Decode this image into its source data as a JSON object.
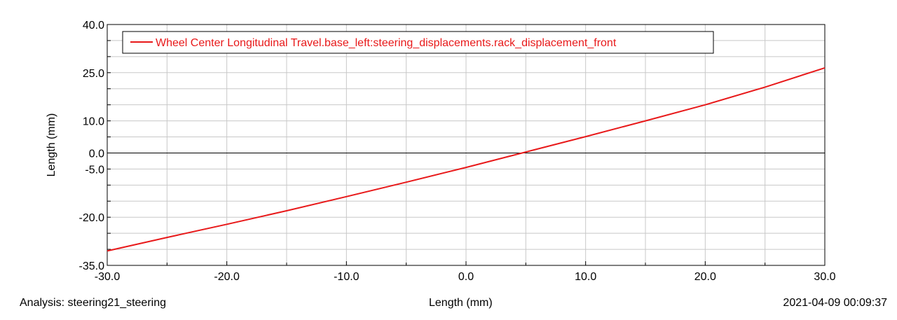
{
  "chart_data": {
    "type": "line",
    "xlabel": "Length (mm)",
    "ylabel": "Length (mm)",
    "xlim": [
      -30,
      30
    ],
    "ylim": [
      -35,
      40
    ],
    "x_ticks": [
      "-30.0",
      "-20.0",
      "-10.0",
      "0.0",
      "10.0",
      "20.0",
      "30.0"
    ],
    "y_ticks": [
      "40.0",
      "25.0",
      "10.0",
      "0.0",
      "-5.0",
      "-20.0",
      "-35.0"
    ],
    "grid": true,
    "legend_placement": "top-left",
    "series": [
      {
        "name": "Wheel Center Longitudinal Travel.base_left:steering_displacements.rack_displacement_front",
        "color": "#e8191a",
        "x": [
          -30,
          -25,
          -20,
          -15,
          -10,
          -5,
          0,
          5,
          10,
          15,
          20,
          25,
          30
        ],
        "y": [
          -30.5,
          -26.3,
          -22.2,
          -18.0,
          -13.6,
          -9.1,
          -4.5,
          0.3,
          5.1,
          10.0,
          15.0,
          20.5,
          26.5
        ]
      }
    ]
  },
  "footer": {
    "analysis": "Analysis:  steering21_steering",
    "xlabel": "Length (mm)",
    "timestamp": "2021-04-09 00:09:37"
  }
}
